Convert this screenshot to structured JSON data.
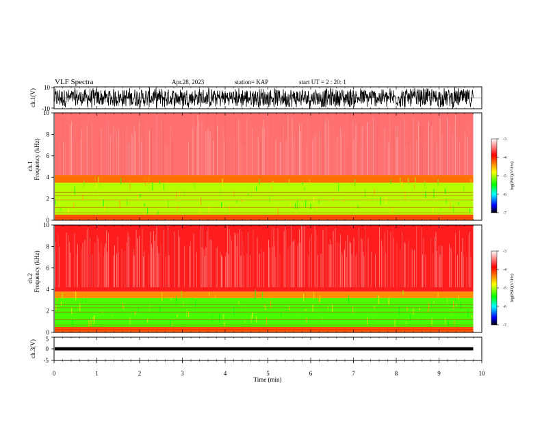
{
  "header": {
    "title": "VLF Spectra",
    "date": "Apr.28, 2023",
    "station": "station= KAP",
    "start": "start UT =  2 : 20: 1"
  },
  "chart_data": [
    {
      "type": "line",
      "panel": "ch1-waveform",
      "ylabel": "ch.1(V)",
      "yticks": [
        "10",
        "-10"
      ],
      "ylim": [
        -10,
        10
      ],
      "xlim": [
        0,
        10
      ],
      "data_extent_min": 9.8,
      "description_of_signal": "dense noisy waveform filling range"
    },
    {
      "type": "heatmap",
      "panel": "ch1-spectrogram",
      "ylabel_top": "ch.1",
      "ylabel": "Frequency (kHz)",
      "yticks": [
        "0",
        "2",
        "4",
        "6",
        "8",
        "10"
      ],
      "ylim": [
        0,
        10
      ],
      "xlim": [
        0,
        10
      ],
      "colorbar": {
        "label": "log(PSD)(V²/Hz)",
        "ticks": [
          "-3",
          "-4",
          "-5",
          "-6",
          "-7"
        ],
        "range": [
          -7,
          -3
        ],
        "colors": [
          "#ffffff",
          "#ff0000",
          "#ffff00",
          "#00ff00",
          "#00ffff",
          "#0000ff",
          "#000000"
        ]
      },
      "bands": [
        {
          "from_khz": 0,
          "to_khz": 0.5,
          "level": -4.2
        },
        {
          "from_khz": 0.5,
          "to_khz": 3.5,
          "level": -5.0
        },
        {
          "from_khz": 3.5,
          "to_khz": 4.2,
          "level": -4.3
        },
        {
          "from_khz": 4.2,
          "to_khz": 10,
          "level": -3.5
        }
      ]
    },
    {
      "type": "heatmap",
      "panel": "ch2-spectrogram",
      "ylabel_top": "ch.2",
      "ylabel": "Frequency (kHz)",
      "yticks": [
        "0",
        "2",
        "4",
        "6",
        "8",
        "10"
      ],
      "ylim": [
        0,
        10
      ],
      "xlim": [
        0,
        10
      ],
      "colorbar": {
        "label": "log(PSD)(V²/Hz)",
        "ticks": [
          "-3",
          "-4",
          "-5",
          "-6",
          "-7"
        ],
        "range": [
          -7,
          -3
        ],
        "colors": [
          "#ffffff",
          "#ff0000",
          "#ffff00",
          "#00ff00",
          "#00ffff",
          "#0000ff",
          "#000000"
        ]
      },
      "bands": [
        {
          "from_khz": 0,
          "to_khz": 0.5,
          "level": -4.2
        },
        {
          "from_khz": 0.5,
          "to_khz": 3.2,
          "level": -5.3
        },
        {
          "from_khz": 3.2,
          "to_khz": 3.8,
          "level": -4.4
        },
        {
          "from_khz": 3.8,
          "to_khz": 10,
          "level": -3.8
        }
      ]
    },
    {
      "type": "line",
      "panel": "ch3-waveform",
      "ylabel": "ch.3(V)",
      "yticks": [
        "5",
        "0",
        "-5"
      ],
      "ylim": [
        -5,
        5
      ],
      "xlim": [
        0,
        10
      ],
      "data_extent_min": 9.8,
      "description_of_signal": "flat thick band near 0 V"
    }
  ],
  "xaxis": {
    "label": "Time (min)",
    "ticks": [
      "0",
      "1",
      "2",
      "3",
      "4",
      "5",
      "6",
      "7",
      "8",
      "9",
      "10"
    ]
  }
}
